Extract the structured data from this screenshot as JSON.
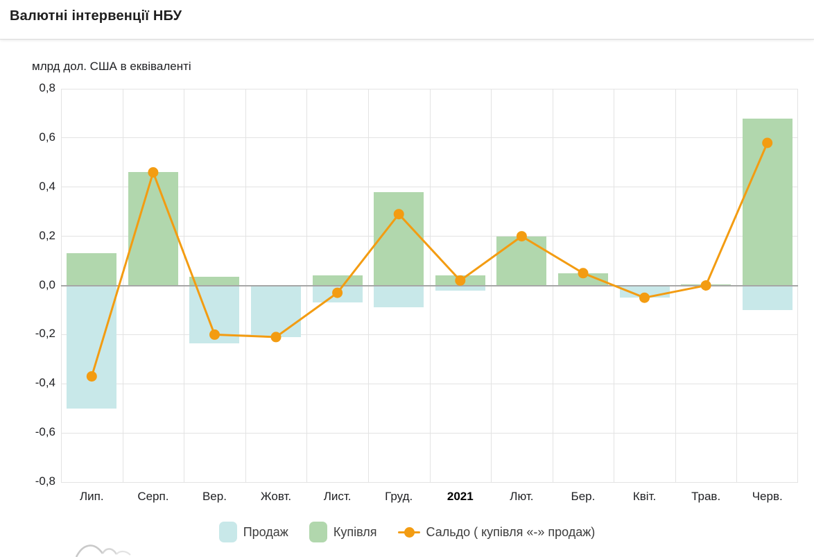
{
  "header": {
    "title": "Валютні інтервенції НБУ"
  },
  "chart": {
    "unit_label": "млрд дол. США в еквіваленті"
  },
  "chart_data": {
    "type": "bar",
    "subtype": "bar+line combo",
    "title": "Валютні інтервенції НБУ",
    "ylabel": "млрд дол. США в еквіваленті",
    "categories": [
      "Лип.",
      "Серп.",
      "Вер.",
      "Жовт.",
      "Лист.",
      "Груд.",
      "2021",
      "Лют.",
      "Бер.",
      "Квіт.",
      "Трав.",
      "Черв."
    ],
    "bold_category": "2021",
    "series": [
      {
        "name": "Продаж",
        "kind": "bar",
        "color": "#c8e8e9",
        "values": [
          -0.5,
          0.0,
          -0.235,
          -0.21,
          -0.07,
          -0.09,
          -0.02,
          0.0,
          0.0,
          -0.05,
          0.0,
          -0.1
        ]
      },
      {
        "name": "Купівля",
        "kind": "bar",
        "color": "#b1d7ad",
        "values": [
          0.13,
          0.46,
          0.035,
          0.0,
          0.04,
          0.38,
          0.04,
          0.2,
          0.05,
          0.0,
          0.005,
          0.68
        ]
      },
      {
        "name": "Сальдо ( купівля «-» продаж)",
        "kind": "line",
        "color": "#f39c12",
        "values": [
          -0.37,
          0.46,
          -0.2,
          -0.21,
          -0.03,
          0.29,
          0.02,
          0.2,
          0.05,
          -0.05,
          0.0,
          0.58
        ]
      }
    ],
    "ylim": [
      -0.8,
      0.8
    ],
    "ytick_step": 0.2,
    "ytick_labels": [
      "0,8",
      "0,6",
      "0,4",
      "0,2",
      "0,0",
      "-0,2",
      "-0,4",
      "-0,6",
      "-0,8"
    ],
    "grid": true,
    "legend_position": "bottom"
  },
  "colors": {
    "gridline": "#e3e3e3",
    "zero_line": "#a6a6a6",
    "axis_text": "#202124",
    "sale_bar": "#c8e8e9",
    "purchase_bar": "#b1d7ad",
    "saldo_line": "#f39c12",
    "watermark": "#d2d2d2"
  }
}
